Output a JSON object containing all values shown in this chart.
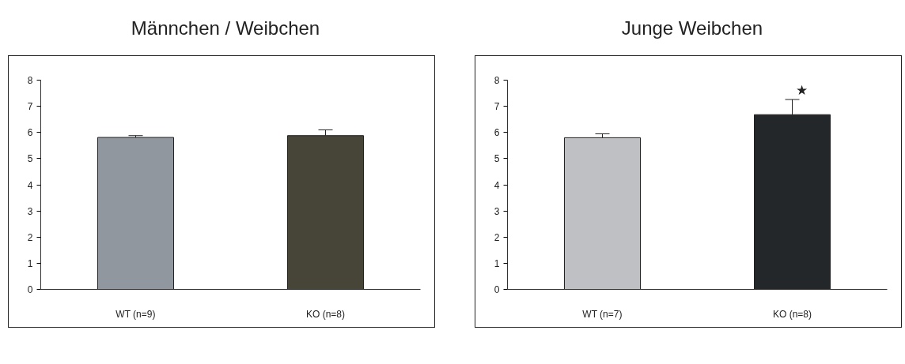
{
  "chart_data": [
    {
      "type": "bar",
      "title": "Männchen / Weibchen",
      "categories": [
        "WT (n=9)",
        "KO (n=8)"
      ],
      "values": [
        5.81,
        5.88
      ],
      "colors": [
        "#90979e",
        "#474538"
      ],
      "errors": [
        [
          5.81,
          5.88
        ],
        [
          5.88,
          6.1
        ]
      ],
      "ylim": [
        0,
        8
      ],
      "yticks": [
        0,
        1,
        2,
        3,
        4,
        5,
        6,
        7,
        8
      ],
      "grid": false
    },
    {
      "type": "bar",
      "title": "Junge Weibchen",
      "categories": [
        "WT (n=7)",
        "KO (n=8)"
      ],
      "values": [
        5.8,
        6.68
      ],
      "colors": [
        "#bec0c4",
        "#24272a"
      ],
      "errors": [
        [
          5.8,
          5.95
        ],
        [
          6.68,
          7.26
        ]
      ],
      "ylim": [
        0,
        8
      ],
      "yticks": [
        0,
        1,
        2,
        3,
        4,
        5,
        6,
        7,
        8
      ],
      "grid": false,
      "annotations": [
        "★"
      ]
    }
  ]
}
